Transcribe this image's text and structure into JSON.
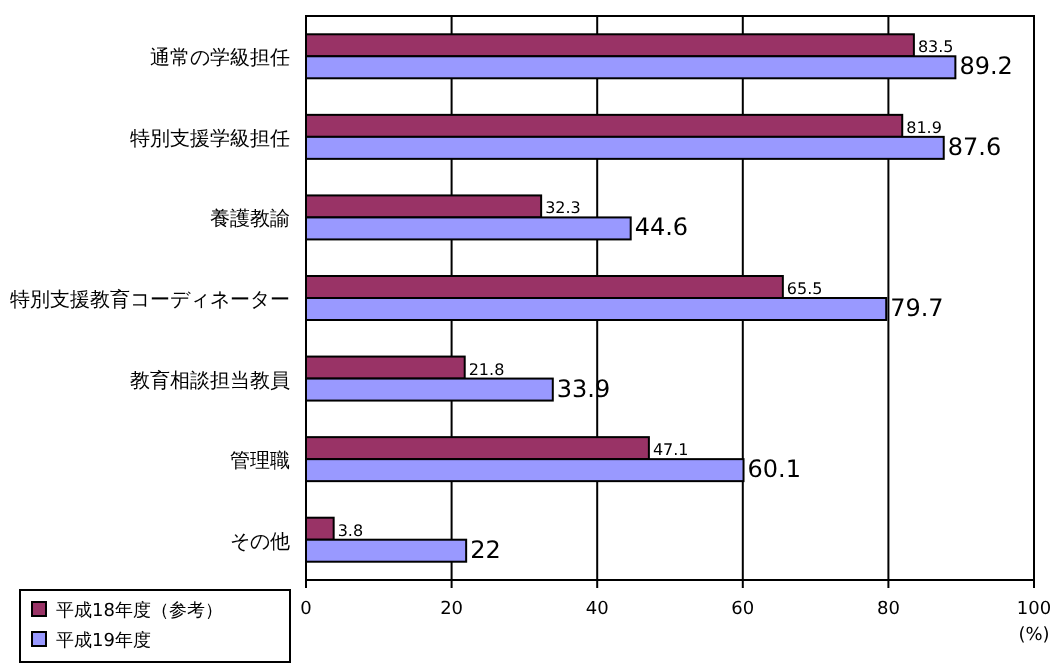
{
  "chart_data": {
    "type": "bar",
    "orientation": "horizontal",
    "categories": [
      "通常の学級担任",
      "特別支援学級担任",
      "養護教諭",
      "特別支援教育コーディネーター",
      "教育相談担当教員",
      "管理職",
      "その他"
    ],
    "series": [
      {
        "name": "平成18年度（参考）",
        "color": "#993366",
        "values": [
          83.5,
          81.9,
          32.3,
          65.5,
          21.8,
          47.1,
          3.8
        ]
      },
      {
        "name": "平成19年度",
        "color": "#9999ff",
        "values": [
          89.2,
          87.6,
          44.6,
          79.7,
          33.9,
          60.1,
          22
        ]
      }
    ],
    "xlim": [
      0,
      100
    ],
    "xticks": [
      0,
      20,
      40,
      60,
      80,
      100
    ],
    "xlabel": "(%)",
    "grid": "x",
    "legend": "bottom left",
    "data_labels": true
  }
}
